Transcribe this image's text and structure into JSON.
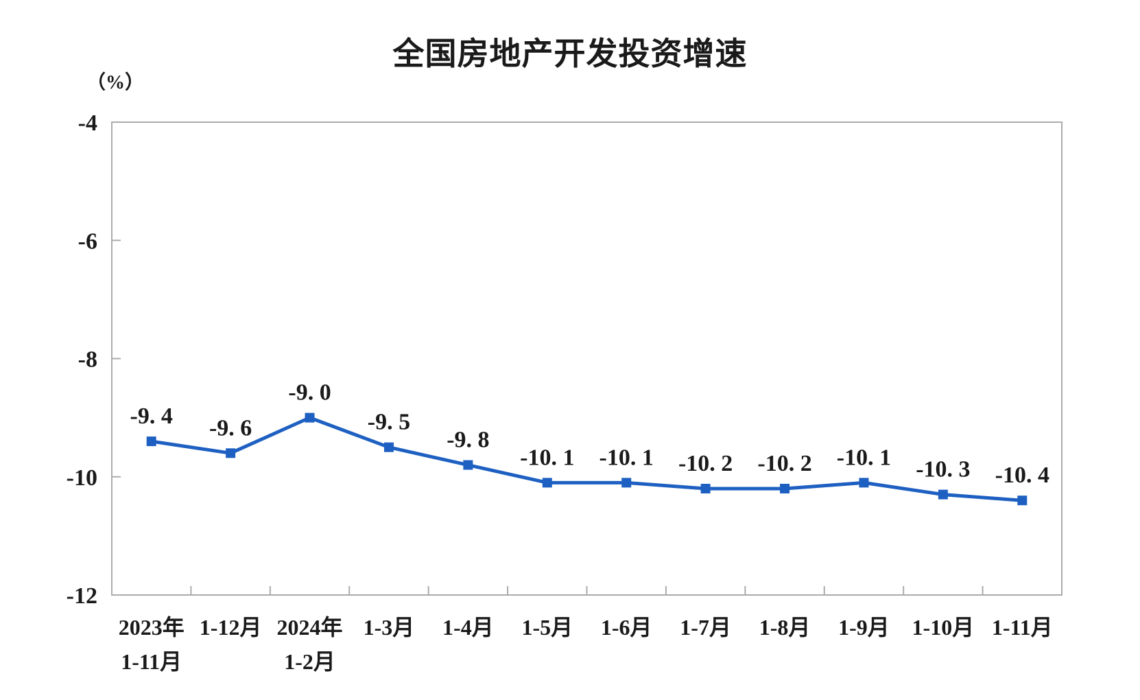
{
  "chart_data": {
    "type": "line",
    "title": "全国房地产开发投资增速",
    "ylabel": "（%）",
    "xlabel": "",
    "categories": [
      "2023年\n1-11月",
      "1-12月",
      "2024年\n1-2月",
      "1-3月",
      "1-4月",
      "1-5月",
      "1-6月",
      "1-7月",
      "1-8月",
      "1-9月",
      "1-10月",
      "1-11月"
    ],
    "values": [
      -9.4,
      -9.6,
      -9.0,
      -9.5,
      -9.8,
      -10.1,
      -10.1,
      -10.2,
      -10.2,
      -10.1,
      -10.3,
      -10.4
    ],
    "data_labels": [
      "-9. 4",
      "-9. 6",
      "-9. 0",
      "-9. 5",
      "-9. 8",
      "-10. 1",
      "-10. 1",
      "-10. 2",
      "-10. 2",
      "-10. 1",
      "-10. 3",
      "-10. 4"
    ],
    "ylim": [
      -12,
      -4
    ],
    "ytick_values": [
      -4,
      -6,
      -8,
      -10,
      -12
    ],
    "ytick_labels": [
      "-4",
      "-6",
      "-8",
      "-10",
      "-12"
    ],
    "grid": false,
    "legend_position": "none",
    "marker": "square",
    "colors": {
      "line": "#1E60C2",
      "marker": "#1E60C2",
      "axis": "#ABABAB",
      "text": "#1A1A1A",
      "background": "#FFFFFF"
    }
  }
}
